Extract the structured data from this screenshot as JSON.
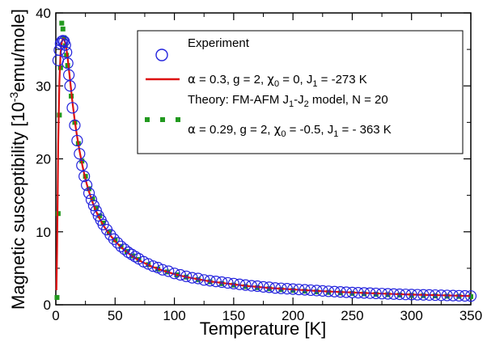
{
  "chart_data": {
    "type": "scatter",
    "title": "",
    "xlabel": "Temperature [K]",
    "ylabel_parts": [
      "Magnetic susceptibility [10",
      "-3",
      "emu/mole]"
    ],
    "xlim": [
      0,
      350
    ],
    "ylim": [
      0,
      40
    ],
    "xticks": [
      0,
      50,
      100,
      150,
      200,
      250,
      300,
      350
    ],
    "yticks": [
      0,
      10,
      20,
      30,
      40
    ],
    "grid": false,
    "legend_position": "top-right",
    "colors": {
      "experiment": "#2222dd",
      "theory_red": "#dd1111",
      "theory_green": "#22991f"
    },
    "series": [
      {
        "key": "experiment",
        "name": "Experiment",
        "style": "open-circle",
        "x": [
          2,
          3,
          4,
          5,
          6,
          7,
          8,
          9,
          10,
          11,
          12,
          14,
          16,
          18,
          20,
          22,
          24,
          26,
          28,
          30,
          32,
          34,
          36,
          38,
          40,
          43,
          46,
          49,
          52,
          55,
          58,
          61,
          64,
          67,
          70,
          74,
          78,
          82,
          86,
          90,
          95,
          100,
          105,
          110,
          115,
          120,
          125,
          130,
          135,
          140,
          145,
          150,
          155,
          160,
          165,
          170,
          175,
          180,
          185,
          190,
          195,
          200,
          205,
          210,
          215,
          220,
          225,
          230,
          235,
          240,
          245,
          250,
          255,
          260,
          265,
          270,
          275,
          280,
          285,
          290,
          295,
          300,
          305,
          310,
          315,
          320,
          325,
          330,
          335,
          340,
          345,
          350
        ],
        "y": [
          33.5,
          34.9,
          35.8,
          36.1,
          36.2,
          36.1,
          35.6,
          34.6,
          33.1,
          31.5,
          30.0,
          27.0,
          24.6,
          22.5,
          20.7,
          19.1,
          17.6,
          16.4,
          15.3,
          14.4,
          13.6,
          12.9,
          12.2,
          11.6,
          11.0,
          10.3,
          9.6,
          9.0,
          8.5,
          8.0,
          7.6,
          7.2,
          6.9,
          6.6,
          6.3,
          5.9,
          5.6,
          5.3,
          5.1,
          4.8,
          4.6,
          4.3,
          4.1,
          3.9,
          3.7,
          3.6,
          3.4,
          3.3,
          3.2,
          3.1,
          3.0,
          2.9,
          2.8,
          2.7,
          2.6,
          2.55,
          2.45,
          2.4,
          2.3,
          2.25,
          2.2,
          2.15,
          2.1,
          2.05,
          2.0,
          1.95,
          1.9,
          1.85,
          1.8,
          1.76,
          1.72,
          1.68,
          1.65,
          1.62,
          1.59,
          1.56,
          1.53,
          1.5,
          1.47,
          1.44,
          1.42,
          1.4,
          1.38,
          1.36,
          1.34,
          1.32,
          1.3,
          1.28,
          1.26,
          1.24,
          1.22,
          1.2
        ]
      },
      {
        "key": "theory_red",
        "name": "α = 0.3,  g = 2, χ0 = 0, J1 = -273 K",
        "style": "solid-line",
        "x": [
          0.5,
          1,
          1.5,
          2,
          3,
          4,
          5,
          6,
          7,
          8,
          9,
          10,
          11,
          12,
          14,
          16,
          18,
          20,
          22,
          24,
          26,
          28,
          30,
          32,
          34,
          36,
          38,
          40,
          45,
          50,
          55,
          60,
          65,
          70,
          75,
          80,
          90,
          100,
          110,
          120,
          130,
          140,
          150,
          160,
          170,
          180,
          190,
          200,
          210,
          220,
          230,
          240,
          250,
          260,
          270,
          280,
          290,
          300,
          310,
          320,
          330,
          340,
          350
        ],
        "y": [
          2,
          7,
          14,
          22,
          30.5,
          34.5,
          36.0,
          36.5,
          36.4,
          35.9,
          35.0,
          33.8,
          32.3,
          30.8,
          27.8,
          25.2,
          23.0,
          21.1,
          19.4,
          17.9,
          16.6,
          15.5,
          14.5,
          13.6,
          12.8,
          12.1,
          11.5,
          10.9,
          9.7,
          8.7,
          7.9,
          7.2,
          6.6,
          6.1,
          5.7,
          5.3,
          4.7,
          4.2,
          3.8,
          3.5,
          3.2,
          3.0,
          2.8,
          2.6,
          2.45,
          2.3,
          2.2,
          2.1,
          2.0,
          1.9,
          1.82,
          1.75,
          1.68,
          1.62,
          1.56,
          1.5,
          1.45,
          1.4,
          1.36,
          1.32,
          1.28,
          1.24,
          1.2
        ]
      },
      {
        "key": "theory_green",
        "name": "α = 0.29, g = 2, χ0 = -0.5,  J1 = - 363 K",
        "style": "square-markers",
        "x": [
          1.0,
          2.0,
          3.0,
          4.0,
          5.0,
          6.0,
          7.0,
          8.0,
          9.0,
          10.0,
          13,
          16,
          19,
          22,
          25,
          28,
          31,
          34,
          37,
          40,
          45,
          50,
          55,
          60,
          65,
          70,
          78,
          86,
          94,
          102,
          110,
          120,
          130,
          140,
          150,
          160,
          170,
          180,
          190,
          200,
          210,
          220,
          230,
          240,
          250,
          260,
          270,
          280,
          290,
          300,
          310,
          320,
          330,
          340,
          350
        ],
        "y": [
          1.0,
          12.5,
          26.0,
          32.5,
          38.6,
          37.8,
          36.6,
          35.5,
          34.2,
          32.8,
          28.6,
          25.0,
          22.1,
          19.7,
          17.6,
          15.9,
          14.5,
          13.2,
          12.2,
          11.2,
          9.9,
          8.9,
          8.0,
          7.3,
          6.7,
          6.2,
          5.5,
          4.9,
          4.5,
          4.1,
          3.8,
          3.45,
          3.15,
          2.9,
          2.7,
          2.5,
          2.35,
          2.2,
          2.08,
          1.97,
          1.87,
          1.78,
          1.7,
          1.63,
          1.56,
          1.5,
          1.44,
          1.39,
          1.34,
          1.3,
          1.26,
          1.22,
          1.18,
          1.15,
          1.12
        ]
      }
    ],
    "legend": {
      "experiment_label": "Experiment",
      "red_label": {
        "alpha_sym": "α",
        "alpha_val": " = 0.3,  g = 2, ",
        "chi_sym": "χ",
        "chi_sub": "0",
        "chi_val": " = 0, J",
        "j_sub": "1",
        "j_val": " = -273 K"
      },
      "theory_title": {
        "pre": "Theory: FM-AFM J",
        "sub1": "1",
        "mid": "-J",
        "sub2": "2",
        "post": " model, N = 20"
      },
      "green_label": {
        "alpha_sym": "α",
        "alpha_val": " = 0.29, g = 2, ",
        "chi_sym": "χ",
        "chi_sub": "0",
        "chi_val": " = -0.5,  J",
        "j_sub": "1",
        "j_val": " = - 363 K"
      }
    }
  }
}
